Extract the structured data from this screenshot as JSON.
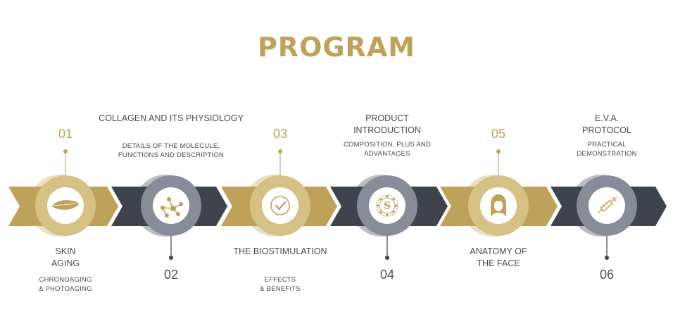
{
  "title": "PROGRAM",
  "colors": {
    "gold": "#bfa25a",
    "dark": "#3e434c",
    "ring_gold": "#d6c184",
    "ring_gray": "#888c98",
    "pin": "#3f444d",
    "text": "#444a55"
  },
  "steps": [
    {
      "number": "01",
      "title": "SKIN\nAGING",
      "subtitle": "CHRONOAGING\n& PHOTOAGING",
      "icon": "lips-icon",
      "theme": "gold",
      "label_side": "bottom"
    },
    {
      "number": "02",
      "title": "COLLAGEN AND ITS PHYSIOLOGY",
      "subtitle": "DETAILS OF THE MOLECULE,\nFUNCTIONS AND DESCRIPTION",
      "icon": "molecule-icon",
      "theme": "dark",
      "label_side": "top"
    },
    {
      "number": "03",
      "title": "THE BIOSTIMULATION",
      "subtitle": "EFFECTS\n& BENEFITS",
      "icon": "check-circle-icon",
      "theme": "gold",
      "label_side": "bottom"
    },
    {
      "number": "04",
      "title": "PRODUCT\nINTRODUCTION",
      "subtitle": "COMPOSITION, PLUS AND\nADVANTAGES",
      "icon": "brand-seal-icon",
      "theme": "dark",
      "label_side": "top"
    },
    {
      "number": "05",
      "title": "ANATOMY OF\nTHE FACE",
      "subtitle": "",
      "icon": "face-icon",
      "theme": "gold",
      "label_side": "bottom"
    },
    {
      "number": "06",
      "title": "E.V.A.\nPROTOCOL",
      "subtitle": "PRACTICAL\nDEMONSTRATION",
      "icon": "syringe-icon",
      "theme": "dark",
      "label_side": "top"
    }
  ],
  "seal_letter": "S"
}
